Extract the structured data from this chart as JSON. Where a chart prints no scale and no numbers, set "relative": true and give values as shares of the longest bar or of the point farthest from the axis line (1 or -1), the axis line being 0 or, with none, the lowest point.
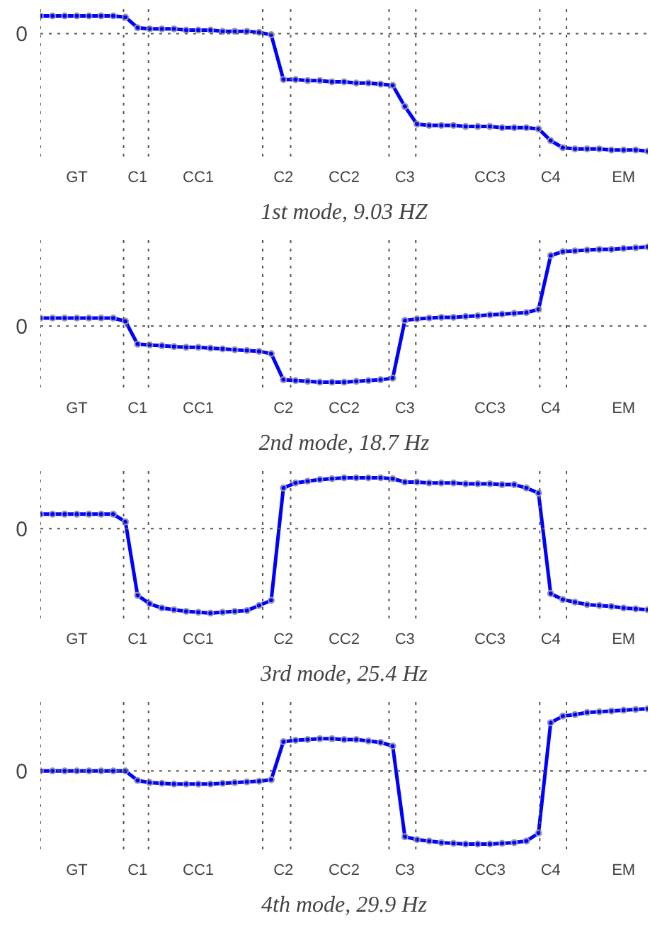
{
  "chart_data": [
    {
      "type": "line",
      "title": "1st mode, 9.03 HZ",
      "relative": true,
      "marker": "circle",
      "line_style": "solid",
      "grid": false,
      "categories": [
        null,
        null,
        null,
        "GT",
        null,
        null,
        null,
        null,
        "C1",
        null,
        null,
        null,
        null,
        "CC1",
        null,
        null,
        null,
        null,
        null,
        null,
        "C2",
        null,
        null,
        null,
        null,
        "CC2",
        null,
        null,
        null,
        null,
        "C3",
        null,
        null,
        null,
        null,
        null,
        null,
        "CC3",
        null,
        null,
        null,
        null,
        "C4",
        null,
        null,
        null,
        null,
        null,
        "EM",
        null,
        null
      ],
      "ref_lines": [
        {
          "axis": "y",
          "value": 0,
          "label": "0"
        }
      ],
      "series": [
        {
          "color": "#0000ff",
          "values": [
            0.15,
            0.15,
            0.15,
            0.15,
            0.15,
            0.15,
            0.15,
            0.14,
            0.05,
            0.04,
            0.04,
            0.04,
            0.03,
            0.03,
            0.03,
            0.02,
            0.02,
            0.02,
            0.01,
            -0.01,
            -0.39,
            -0.39,
            -0.4,
            -0.4,
            -0.41,
            -0.41,
            -0.42,
            -0.42,
            -0.43,
            -0.44,
            -0.62,
            -0.77,
            -0.78,
            -0.78,
            -0.78,
            -0.79,
            -0.79,
            -0.79,
            -0.8,
            -0.8,
            -0.8,
            -0.81,
            -0.91,
            -0.97,
            -0.98,
            -0.98,
            -0.98,
            -0.99,
            -0.99,
            -0.99,
            -1
          ]
        }
      ]
    },
    {
      "type": "line",
      "title": "2nd mode, 18.7 Hz",
      "relative": true,
      "marker": "circle",
      "line_style": "solid",
      "grid": false,
      "categories": [
        null,
        null,
        null,
        "GT",
        null,
        null,
        null,
        null,
        "C1",
        null,
        null,
        null,
        null,
        "CC1",
        null,
        null,
        null,
        null,
        null,
        null,
        "C2",
        null,
        null,
        null,
        null,
        "CC2",
        null,
        null,
        null,
        null,
        "C3",
        null,
        null,
        null,
        null,
        null,
        null,
        "CC3",
        null,
        null,
        null,
        null,
        "C4",
        null,
        null,
        null,
        null,
        null,
        "EM",
        null,
        null
      ],
      "ref_lines": [
        {
          "axis": "y",
          "value": 0,
          "label": "0"
        }
      ],
      "series": [
        {
          "color": "#0000ff",
          "values": [
            0.1,
            0.1,
            0.1,
            0.1,
            0.1,
            0.1,
            0.1,
            0.06,
            -0.23,
            -0.24,
            -0.25,
            -0.26,
            -0.27,
            -0.27,
            -0.28,
            -0.29,
            -0.3,
            -0.31,
            -0.32,
            -0.35,
            -0.68,
            -0.69,
            -0.7,
            -0.71,
            -0.71,
            -0.71,
            -0.7,
            -0.69,
            -0.68,
            -0.66,
            0.07,
            0.09,
            0.1,
            0.11,
            0.11,
            0.12,
            0.13,
            0.14,
            0.15,
            0.16,
            0.17,
            0.21,
            0.89,
            0.94,
            0.95,
            0.96,
            0.97,
            0.97,
            0.98,
            0.99,
            1
          ]
        }
      ]
    },
    {
      "type": "line",
      "title": "3rd mode, 25.4 Hz",
      "relative": true,
      "marker": "circle",
      "line_style": "solid",
      "grid": false,
      "categories": [
        null,
        null,
        null,
        "GT",
        null,
        null,
        null,
        null,
        "C1",
        null,
        null,
        null,
        null,
        "CC1",
        null,
        null,
        null,
        null,
        null,
        null,
        "C2",
        null,
        null,
        null,
        null,
        "CC2",
        null,
        null,
        null,
        null,
        "C3",
        null,
        null,
        null,
        null,
        null,
        null,
        "CC3",
        null,
        null,
        null,
        null,
        "C4",
        null,
        null,
        null,
        null,
        null,
        "EM",
        null,
        null
      ],
      "ref_lines": [
        {
          "axis": "y",
          "value": 0,
          "label": "0"
        }
      ],
      "series": [
        {
          "color": "#0000ff",
          "values": [
            0.17,
            0.17,
            0.17,
            0.17,
            0.17,
            0.17,
            0.17,
            0.08,
            -0.79,
            -0.89,
            -0.94,
            -0.96,
            -0.98,
            -0.99,
            -1,
            -0.99,
            -0.98,
            -0.97,
            -0.91,
            -0.85,
            0.48,
            0.54,
            0.56,
            0.58,
            0.59,
            0.6,
            0.6,
            0.6,
            0.6,
            0.59,
            0.55,
            0.55,
            0.54,
            0.54,
            0.54,
            0.53,
            0.53,
            0.53,
            0.52,
            0.52,
            0.48,
            0.42,
            -0.77,
            -0.84,
            -0.87,
            -0.9,
            -0.91,
            -0.92,
            -0.94,
            -0.95,
            -0.96
          ]
        }
      ]
    },
    {
      "type": "line",
      "title": "4th mode, 29.9 Hz",
      "relative": true,
      "marker": "circle",
      "line_style": "solid",
      "grid": false,
      "categories": [
        null,
        null,
        null,
        "GT",
        null,
        null,
        null,
        null,
        "C1",
        null,
        null,
        null,
        null,
        "CC1",
        null,
        null,
        null,
        null,
        null,
        null,
        "C2",
        null,
        null,
        null,
        null,
        "CC2",
        null,
        null,
        null,
        null,
        "C3",
        null,
        null,
        null,
        null,
        null,
        null,
        "CC3",
        null,
        null,
        null,
        null,
        "C4",
        null,
        null,
        null,
        null,
        null,
        "EM",
        null,
        null
      ],
      "ref_lines": [
        {
          "axis": "y",
          "value": 0,
          "label": "0"
        }
      ],
      "series": [
        {
          "color": "#0000ff",
          "values": [
            0,
            0,
            0,
            0,
            0,
            0,
            0,
            0,
            -0.13,
            -0.16,
            -0.17,
            -0.18,
            -0.18,
            -0.18,
            -0.18,
            -0.17,
            -0.16,
            -0.15,
            -0.14,
            -0.12,
            0.4,
            0.42,
            0.43,
            0.44,
            0.44,
            0.43,
            0.43,
            0.41,
            0.39,
            0.34,
            -0.9,
            -0.94,
            -0.96,
            -0.98,
            -0.99,
            -1,
            -1,
            -1,
            -0.99,
            -0.98,
            -0.96,
            -0.85,
            0.66,
            0.75,
            0.77,
            0.8,
            0.81,
            0.82,
            0.83,
            0.84,
            0.85
          ]
        }
      ]
    }
  ]
}
